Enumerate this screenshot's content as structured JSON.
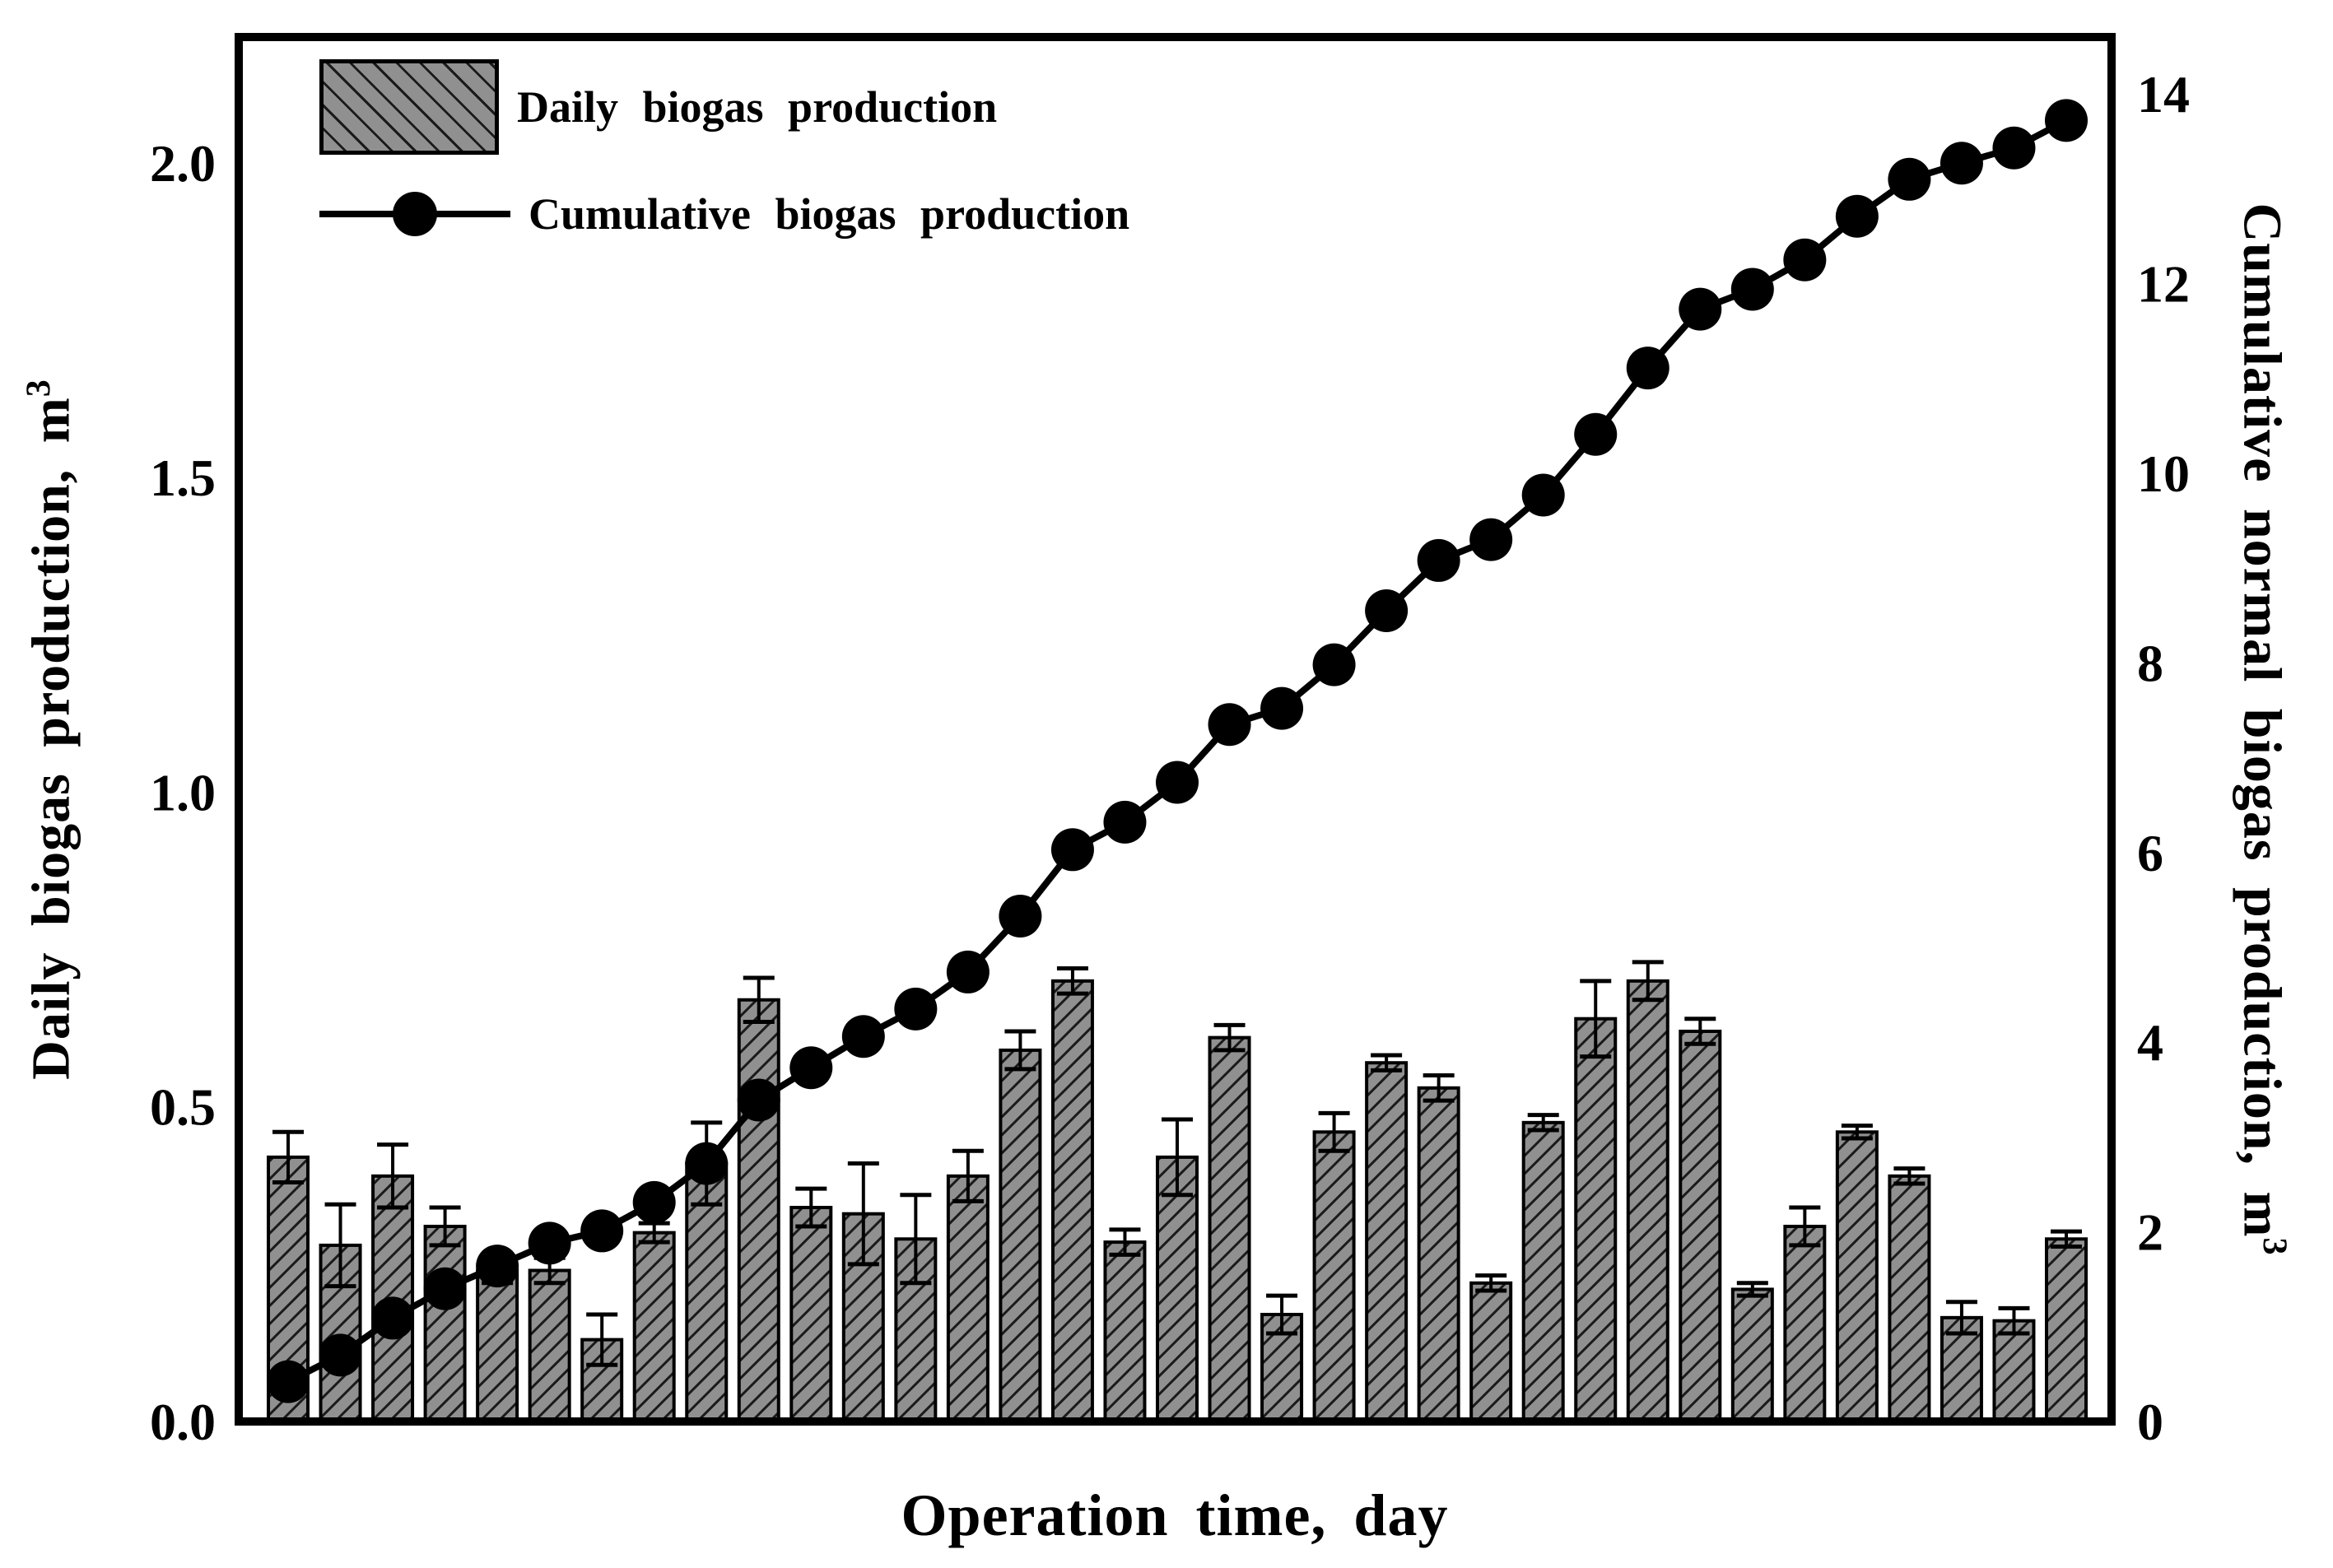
{
  "figure": {
    "background": "#ffffff",
    "colors": {
      "bar_fill": "#909090",
      "bar_hatch": "#1a1a1a",
      "bar_border": "#000000",
      "line": "#000000",
      "text": "#000000"
    }
  },
  "chart_data": {
    "type": "bar",
    "title": "",
    "xlabel": "Operation time, day",
    "grid": false,
    "legend_position": "top-left-inside",
    "legend": [
      "Daily biogas production",
      "Cumulative biogas production"
    ],
    "x_days": [
      1,
      2,
      3,
      4,
      5,
      6,
      7,
      8,
      9,
      10,
      11,
      12,
      13,
      14,
      15,
      16,
      17,
      18,
      19,
      20,
      21,
      22,
      23,
      24,
      25,
      26,
      27,
      28,
      29,
      30,
      31,
      32,
      33,
      34,
      35
    ],
    "series": [
      {
        "name": "Daily biogas production",
        "plot": "bar",
        "axis": "left",
        "values": [
          0.42,
          0.28,
          0.39,
          0.31,
          0.24,
          0.24,
          0.13,
          0.3,
          0.41,
          0.67,
          0.34,
          0.33,
          0.29,
          0.39,
          0.59,
          0.7,
          0.285,
          0.42,
          0.61,
          0.17,
          0.46,
          0.57,
          0.53,
          0.22,
          0.475,
          0.64,
          0.7,
          0.62,
          0.21,
          0.31,
          0.46,
          0.39,
          0.165,
          0.16,
          0.29
        ],
        "errors": [
          0.04,
          0.065,
          0.05,
          0.03,
          0.02,
          0.02,
          0.04,
          0.015,
          0.065,
          0.035,
          0.03,
          0.08,
          0.07,
          0.04,
          0.03,
          0.02,
          0.02,
          0.06,
          0.02,
          0.03,
          0.03,
          0.012,
          0.02,
          0.012,
          0.012,
          0.06,
          0.03,
          0.02,
          0.01,
          0.03,
          0.01,
          0.012,
          0.025,
          0.02,
          0.012
        ]
      },
      {
        "name": "Cumulative biogas production",
        "plot": "line",
        "axis": "right",
        "values": [
          0.42,
          0.7,
          1.09,
          1.4,
          1.64,
          1.88,
          2.01,
          2.31,
          2.72,
          3.39,
          3.73,
          4.06,
          4.35,
          4.74,
          5.33,
          6.03,
          6.32,
          6.74,
          7.35,
          7.52,
          7.98,
          8.55,
          9.08,
          9.3,
          9.77,
          10.41,
          11.11,
          11.73,
          11.94,
          12.25,
          12.71,
          13.1,
          13.27,
          13.43,
          13.72
        ]
      }
    ],
    "left_axis": {
      "label": "Daily  biogas production, m",
      "label_sup": "3",
      "tick_labels": [
        "0.0",
        "0.5",
        "1.0",
        "1.5",
        "2.0"
      ],
      "tick_values": [
        0,
        0.5,
        1.0,
        1.5,
        2.0
      ],
      "range": [
        0,
        2.2
      ]
    },
    "right_axis": {
      "label": "Cumulative normal biogas production, m",
      "label_sup": "3",
      "tick_labels": [
        "0",
        "2",
        "4",
        "6",
        "8",
        "10",
        "12",
        "14"
      ],
      "tick_values": [
        0,
        2,
        4,
        6,
        8,
        10,
        12,
        14
      ],
      "range": [
        0,
        14.6
      ]
    },
    "x_axis": {
      "label": "Operation time, day",
      "tick_labels": [],
      "range": [
        0.5,
        35.5
      ]
    }
  }
}
